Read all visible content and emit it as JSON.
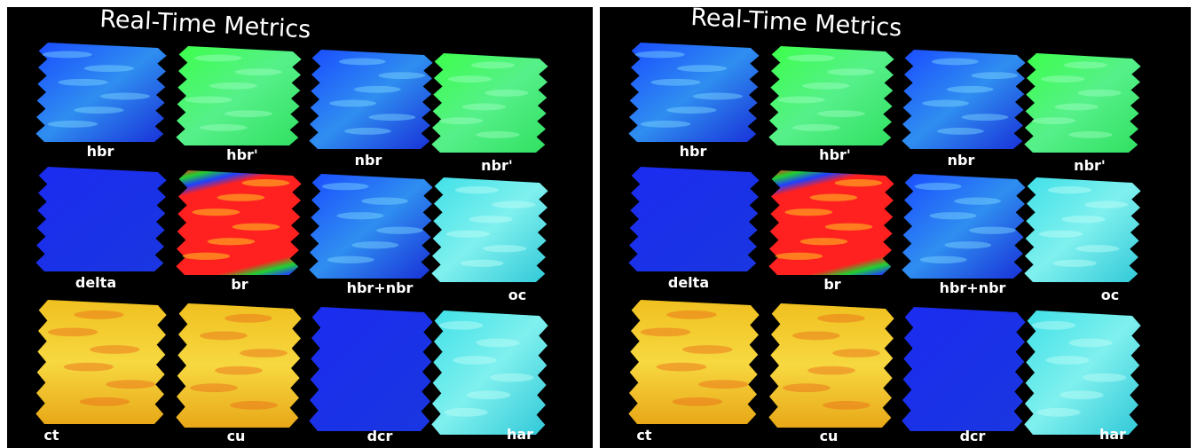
{
  "panels": [
    {
      "title": "Real-Time Metrics",
      "labels": [
        "hbr",
        "hbr'",
        "nbr",
        "nbr'",
        "delta",
        "br",
        "hbr+nbr",
        "oc",
        "ct",
        "cu",
        "dcr",
        "har"
      ]
    },
    {
      "title": "Real-Time Metrics",
      "labels": [
        "hbr",
        "hbr'",
        "nbr",
        "nbr'",
        "delta",
        "br",
        "hbr+nbr",
        "oc",
        "ct",
        "cu",
        "dcr",
        "har"
      ]
    }
  ]
}
